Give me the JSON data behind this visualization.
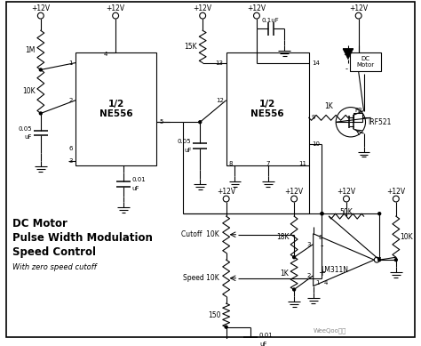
{
  "bg_color": "#ffffff",
  "title_lines": [
    "DC Motor",
    "Pulse Width Modulation",
    "Speed Control"
  ],
  "subtitle": "With zero speed cutoff",
  "watermark": "WeeQoo库库",
  "fig_width": 4.74,
  "fig_height": 3.89,
  "dpi": 100
}
